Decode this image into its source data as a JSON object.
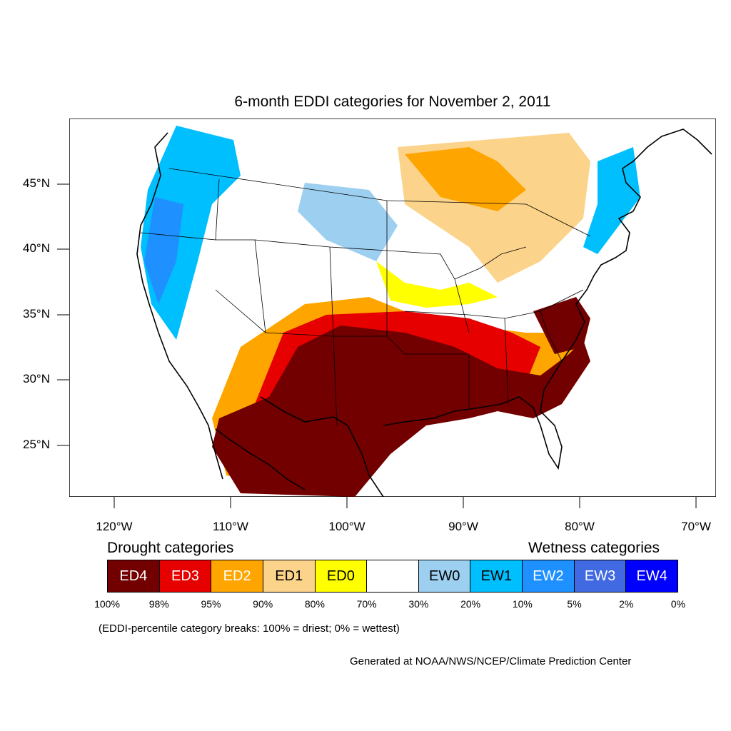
{
  "title": "6-month EDDI categories for November 2, 2011",
  "map": {
    "latitude_labels": [
      "45°N",
      "40°N",
      "35°N",
      "30°N",
      "25°N"
    ],
    "longitude_labels": [
      "120°W",
      "110°W",
      "100°W",
      "90°W",
      "80°W",
      "70°W"
    ]
  },
  "legend": {
    "drought_heading": "Drought categories",
    "wetness_heading": "Wetness categories",
    "categories": [
      {
        "label": "ED4",
        "color": "#720000",
        "text_color": "#ffffff"
      },
      {
        "label": "ED3",
        "color": "#e60000",
        "text_color": "#ffffff"
      },
      {
        "label": "ED2",
        "color": "#ffa500",
        "text_color": "#ffffff"
      },
      {
        "label": "ED1",
        "color": "#fcd38a",
        "text_color": "#000000"
      },
      {
        "label": "ED0",
        "color": "#ffff00",
        "text_color": "#000000"
      },
      {
        "label": "",
        "color": "#ffffff",
        "text_color": "#000000"
      },
      {
        "label": "EW0",
        "color": "#9dcff0",
        "text_color": "#000000"
      },
      {
        "label": "EW1",
        "color": "#00bfff",
        "text_color": "#000000"
      },
      {
        "label": "EW2",
        "color": "#1e90ff",
        "text_color": "#ffffff"
      },
      {
        "label": "EW3",
        "color": "#4169e1",
        "text_color": "#ffffff"
      },
      {
        "label": "EW4",
        "color": "#0000ff",
        "text_color": "#ffffff"
      }
    ],
    "percentiles": [
      "100%",
      "98%",
      "95%",
      "90%",
      "80%",
      "70%",
      "30%",
      "20%",
      "10%",
      "5%",
      "2%",
      "0%"
    ]
  },
  "footnote": "(EDDI-percentile category breaks: 100% = driest; 0% = wettest)",
  "credit": "Generated at NOAA/NWS/NCEP/Climate Prediction Center"
}
